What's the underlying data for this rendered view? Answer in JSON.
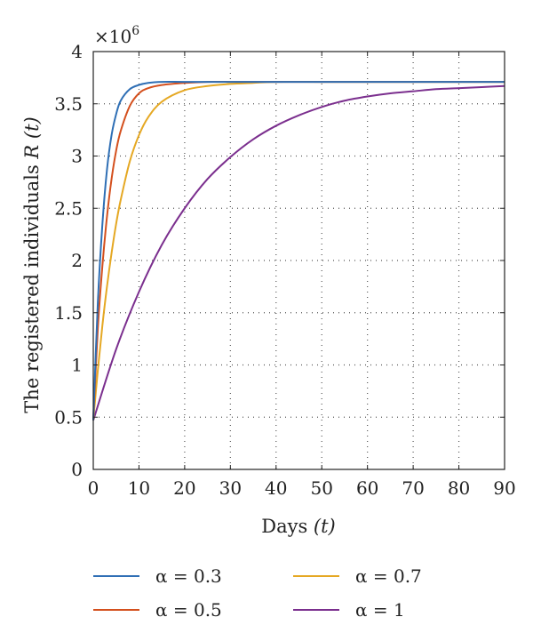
{
  "chart_data": {
    "type": "line",
    "title": "",
    "xlabel": {
      "main": "Days ",
      "var": "(t)"
    },
    "ylabel": {
      "main": "The registered individuals ",
      "var": "R (t)"
    },
    "y_multiplier": {
      "base": "×10",
      "exp": "6"
    },
    "xlim": [
      0,
      90
    ],
    "ylim": [
      0,
      4
    ],
    "x_ticks": [
      "0",
      "10",
      "20",
      "30",
      "40",
      "50",
      "60",
      "70",
      "80",
      "90"
    ],
    "y_ticks": [
      "0",
      "0.5",
      "1",
      "1.5",
      "2",
      "2.5",
      "3",
      "3.5",
      "4"
    ],
    "grid": "dotted",
    "legend_placement": "bottom",
    "series": [
      {
        "name": "α = 0.3",
        "color": "#2f6fb5",
        "x": [
          0,
          1,
          2,
          3,
          4,
          5,
          6,
          8,
          10,
          12,
          15,
          20,
          30,
          40,
          60,
          90
        ],
        "y": [
          0.47,
          1.6,
          2.35,
          2.87,
          3.2,
          3.4,
          3.53,
          3.64,
          3.68,
          3.7,
          3.71,
          3.71,
          3.71,
          3.71,
          3.71,
          3.71
        ]
      },
      {
        "name": "α = 0.5",
        "color": "#d4501e",
        "x": [
          0,
          1,
          2,
          3,
          4,
          5,
          6,
          8,
          10,
          12,
          15,
          20,
          25,
          30,
          40,
          60,
          90
        ],
        "y": [
          0.47,
          1.35,
          1.95,
          2.42,
          2.78,
          3.05,
          3.24,
          3.48,
          3.6,
          3.65,
          3.68,
          3.7,
          3.71,
          3.71,
          3.71,
          3.71,
          3.71
        ]
      },
      {
        "name": "α = 0.7",
        "color": "#e5a823",
        "x": [
          0,
          1,
          2,
          3,
          4,
          5,
          6,
          8,
          10,
          12,
          15,
          20,
          25,
          30,
          35,
          40,
          50,
          60,
          90
        ],
        "y": [
          0.47,
          0.95,
          1.38,
          1.75,
          2.07,
          2.35,
          2.58,
          2.95,
          3.2,
          3.37,
          3.52,
          3.63,
          3.67,
          3.69,
          3.7,
          3.71,
          3.71,
          3.71,
          3.71
        ]
      },
      {
        "name": "α = 1",
        "color": "#7b2f8e",
        "x": [
          0,
          5,
          10,
          15,
          20,
          25,
          30,
          35,
          40,
          45,
          50,
          55,
          60,
          65,
          70,
          75,
          80,
          85,
          90
        ],
        "y": [
          0.47,
          1.15,
          1.7,
          2.15,
          2.5,
          2.78,
          2.99,
          3.16,
          3.29,
          3.39,
          3.47,
          3.53,
          3.57,
          3.6,
          3.62,
          3.64,
          3.65,
          3.66,
          3.67
        ]
      }
    ]
  }
}
